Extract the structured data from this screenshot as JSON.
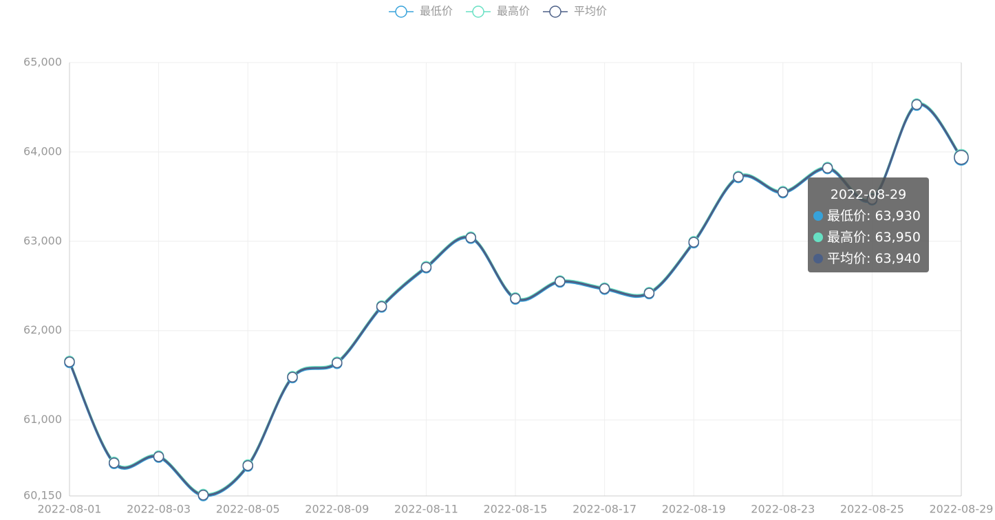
{
  "chart_data": {
    "type": "line",
    "categories": [
      "2022-08-01",
      null,
      "2022-08-03",
      null,
      "2022-08-05",
      null,
      "2022-08-09",
      null,
      "2022-08-11",
      null,
      "2022-08-15",
      null,
      "2022-08-17",
      null,
      "2022-08-19",
      null,
      "2022-08-23",
      null,
      "2022-08-25",
      null,
      "2022-08-29"
    ],
    "series": [
      {
        "name": "最低价",
        "color": "#37a2da",
        "values": [
          61640,
          60510,
          60580,
          60150,
          60480,
          61470,
          61630,
          62260,
          62700,
          63030,
          62350,
          62540,
          62460,
          62410,
          62980,
          63710,
          63540,
          63810,
          63460,
          64520,
          63930
        ]
      },
      {
        "name": "最高价",
        "color": "#67e0c3",
        "values": [
          61660,
          60530,
          60600,
          60170,
          60500,
          61490,
          61650,
          62280,
          62720,
          63050,
          62370,
          62560,
          62480,
          62430,
          63000,
          63730,
          63560,
          63830,
          63480,
          64540,
          63950
        ]
      },
      {
        "name": "平均价",
        "color": "#4b5f86",
        "values": [
          61650,
          60520,
          60590,
          60160,
          60490,
          61480,
          61640,
          62270,
          62710,
          63040,
          62360,
          62550,
          62470,
          62420,
          62990,
          63720,
          63550,
          63820,
          63470,
          64530,
          63940
        ]
      }
    ],
    "ylim": [
      60150,
      65000
    ],
    "yticks": [
      {
        "value": 60150,
        "label": "60,150"
      },
      {
        "value": 61000,
        "label": "61,000"
      },
      {
        "value": 62000,
        "label": "62,000"
      },
      {
        "value": 63000,
        "label": "63,000"
      },
      {
        "value": 64000,
        "label": "64,000"
      },
      {
        "value": 65000,
        "label": "65,000"
      }
    ],
    "grid": true,
    "legend": "top",
    "tooltip": {
      "title": "2022-08-29",
      "rows": [
        "最低价: 63,930",
        "最高价: 63,950",
        "平均价: 63,940"
      ]
    }
  }
}
